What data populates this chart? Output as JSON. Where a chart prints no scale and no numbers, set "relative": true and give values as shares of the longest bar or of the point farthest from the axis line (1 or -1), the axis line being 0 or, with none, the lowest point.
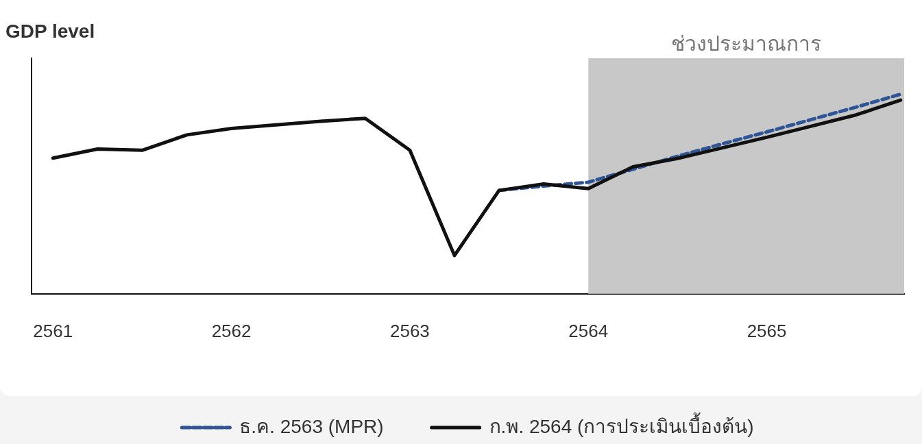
{
  "chart_data": {
    "type": "line",
    "ylabel": "GDP level",
    "relative": true,
    "x": [
      2561,
      2561.25,
      2561.5,
      2561.75,
      2562,
      2562.25,
      2562.5,
      2562.75,
      2563,
      2563.25,
      2563.5,
      2563.75,
      2564,
      2564.25,
      2564.5,
      2564.75,
      2565,
      2565.25,
      2565.5,
      2565.75
    ],
    "xlim": [
      2560.88,
      2565.77
    ],
    "xticks": [
      2561,
      2562,
      2563,
      2564,
      2565
    ],
    "series": [
      {
        "name": "ธ.ค. 2563 (MPR)",
        "color": "#2f5597",
        "line_style": "dashed",
        "values": [
          null,
          null,
          null,
          null,
          null,
          null,
          null,
          null,
          null,
          null,
          0.518,
          0.54,
          0.559,
          0.624,
          0.689,
          0.751,
          0.811,
          0.873,
          0.935,
          1.0
        ]
      },
      {
        "name": "ก.พ. 2564 (การประเมินเบื้องต้น)",
        "color": "#111111",
        "line_style": "solid",
        "values": [
          0.68,
          0.725,
          0.719,
          0.796,
          0.828,
          0.846,
          0.864,
          0.879,
          0.719,
          0.192,
          0.518,
          0.55,
          0.527,
          0.636,
          0.678,
          0.731,
          0.784,
          0.84,
          0.896,
          0.97
        ]
      }
    ],
    "bands": [
      {
        "axis": "x",
        "from": 2564,
        "to": 2565.77,
        "label": "ช่วงประมาณการ",
        "color": "#c8c8c8"
      }
    ],
    "legend": "bottom",
    "grid": false,
    "marker": "none"
  }
}
